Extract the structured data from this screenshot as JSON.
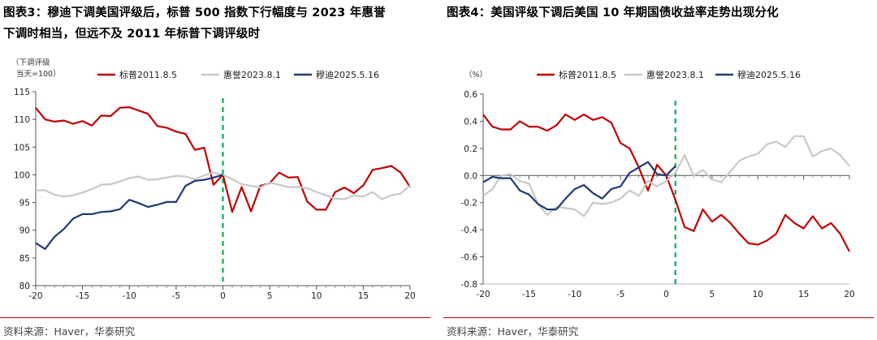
{
  "left_panel": {
    "title_line1": "图表3：穆迪下调美国评级后，标普 500 指数下行幅度与 2023 年惠誉",
    "title_line2": "下调时相当，但远不及 2011 年标普下调评级时",
    "source": "资料来源：Haver，华泰研究"
  },
  "right_panel": {
    "title_line1": "图表4：美国评级下调后美国 10 年期国债收益率走势出现分化",
    "source": "资料来源：Haver，华泰研究"
  },
  "colors": {
    "red": "#c00000",
    "gray": "#c8c8c8",
    "navy": "#1f3a73",
    "green": "#00b050",
    "rule": "#c00000"
  },
  "chart_data": [
    {
      "type": "line",
      "unit_label_line1": "（下调评级",
      "unit_label_line2": "当天=100）",
      "xlim": [
        -20,
        20
      ],
      "ylim": [
        80,
        115
      ],
      "xticks": [
        -20,
        -15,
        -10,
        -5,
        0,
        5,
        10,
        15,
        20
      ],
      "yticks": [
        80,
        85,
        90,
        95,
        100,
        105,
        110,
        115
      ],
      "event_line_x": 0,
      "series": [
        {
          "name": "标普2011.8.5",
          "color": "red",
          "x_start": -20,
          "values": [
            112.1,
            110.0,
            109.6,
            109.8,
            109.2,
            109.7,
            108.9,
            110.7,
            110.6,
            112.1,
            112.2,
            111.6,
            111.0,
            108.8,
            108.5,
            107.8,
            107.4,
            104.5,
            104.9,
            98.2,
            100.0,
            93.3,
            97.8,
            93.4,
            98.0,
            98.5,
            100.4,
            99.5,
            99.6,
            95.2,
            93.7,
            93.7,
            96.9,
            97.7,
            96.7,
            98.1,
            100.9,
            101.2,
            101.6,
            100.4,
            97.8
          ]
        },
        {
          "name": "惠誉2023.8.1",
          "color": "gray",
          "x_start": -20,
          "values": [
            97.2,
            97.2,
            96.4,
            96.1,
            96.3,
            96.8,
            97.4,
            98.2,
            98.3,
            98.8,
            99.4,
            99.7,
            99.1,
            99.2,
            99.5,
            99.8,
            99.7,
            99.2,
            99.9,
            100.4,
            100.0,
            99.2,
            98.3,
            98.0,
            97.7,
            98.6,
            98.2,
            97.8,
            97.8,
            97.6,
            96.9,
            96.3,
            95.7,
            95.6,
            96.3,
            96.1,
            96.9,
            95.6,
            96.3,
            96.6,
            98.1
          ]
        },
        {
          "name": "穆迪2025.5.16",
          "color": "navy",
          "x_start": -20,
          "values": [
            87.7,
            86.6,
            88.8,
            90.2,
            92.1,
            92.9,
            92.9,
            93.3,
            93.4,
            93.8,
            95.5,
            94.9,
            94.2,
            94.6,
            95.1,
            95.1,
            98.0,
            98.9,
            99.1,
            99.5,
            100.0
          ]
        }
      ]
    },
    {
      "type": "line",
      "unit_label_line1": "（%）",
      "xlim": [
        -20,
        20
      ],
      "ylim": [
        -0.8,
        0.6
      ],
      "xticks": [
        -20,
        -15,
        -10,
        -5,
        0,
        5,
        10,
        15,
        20
      ],
      "yticks": [
        -0.8,
        -0.6,
        -0.4,
        -0.2,
        0.0,
        0.2,
        0.4,
        0.6
      ],
      "ytick_labels": [
        "-0.8",
        "-0.6",
        "-0.4",
        "-0.2",
        "0.0",
        "0.2",
        "0.4",
        "0.6"
      ],
      "event_line_x": 1,
      "series": [
        {
          "name": "标普2011.8.5",
          "color": "red",
          "x_start": -20,
          "values": [
            0.45,
            0.36,
            0.34,
            0.34,
            0.4,
            0.36,
            0.36,
            0.33,
            0.37,
            0.45,
            0.41,
            0.45,
            0.41,
            0.43,
            0.39,
            0.24,
            0.2,
            0.06,
            -0.11,
            0.08,
            0.0,
            -0.18,
            -0.38,
            -0.41,
            -0.25,
            -0.34,
            -0.29,
            -0.35,
            -0.43,
            -0.5,
            -0.51,
            -0.48,
            -0.43,
            -0.29,
            -0.35,
            -0.39,
            -0.3,
            -0.39,
            -0.35,
            -0.43,
            -0.56
          ]
        },
        {
          "name": "惠誉2023.8.1",
          "color": "gray",
          "x_start": -20,
          "values": [
            -0.15,
            -0.1,
            0.0,
            0.01,
            -0.04,
            -0.06,
            -0.21,
            -0.29,
            -0.23,
            -0.24,
            -0.25,
            -0.3,
            -0.2,
            -0.21,
            -0.2,
            -0.17,
            -0.11,
            -0.15,
            -0.04,
            -0.08,
            -0.04,
            0.02,
            0.15,
            0.0,
            0.04,
            -0.03,
            -0.05,
            0.03,
            0.11,
            0.14,
            0.16,
            0.23,
            0.25,
            0.21,
            0.29,
            0.29,
            0.14,
            0.18,
            0.2,
            0.15,
            0.07
          ]
        },
        {
          "name": "穆迪2025.5.16",
          "color": "navy",
          "x_start": -20,
          "values": [
            -0.05,
            -0.01,
            -0.02,
            -0.02,
            -0.11,
            -0.14,
            -0.21,
            -0.25,
            -0.25,
            -0.17,
            -0.1,
            -0.07,
            -0.13,
            -0.17,
            -0.1,
            -0.08,
            0.02,
            0.06,
            0.1,
            0.01,
            0.0,
            0.07
          ]
        }
      ]
    }
  ]
}
